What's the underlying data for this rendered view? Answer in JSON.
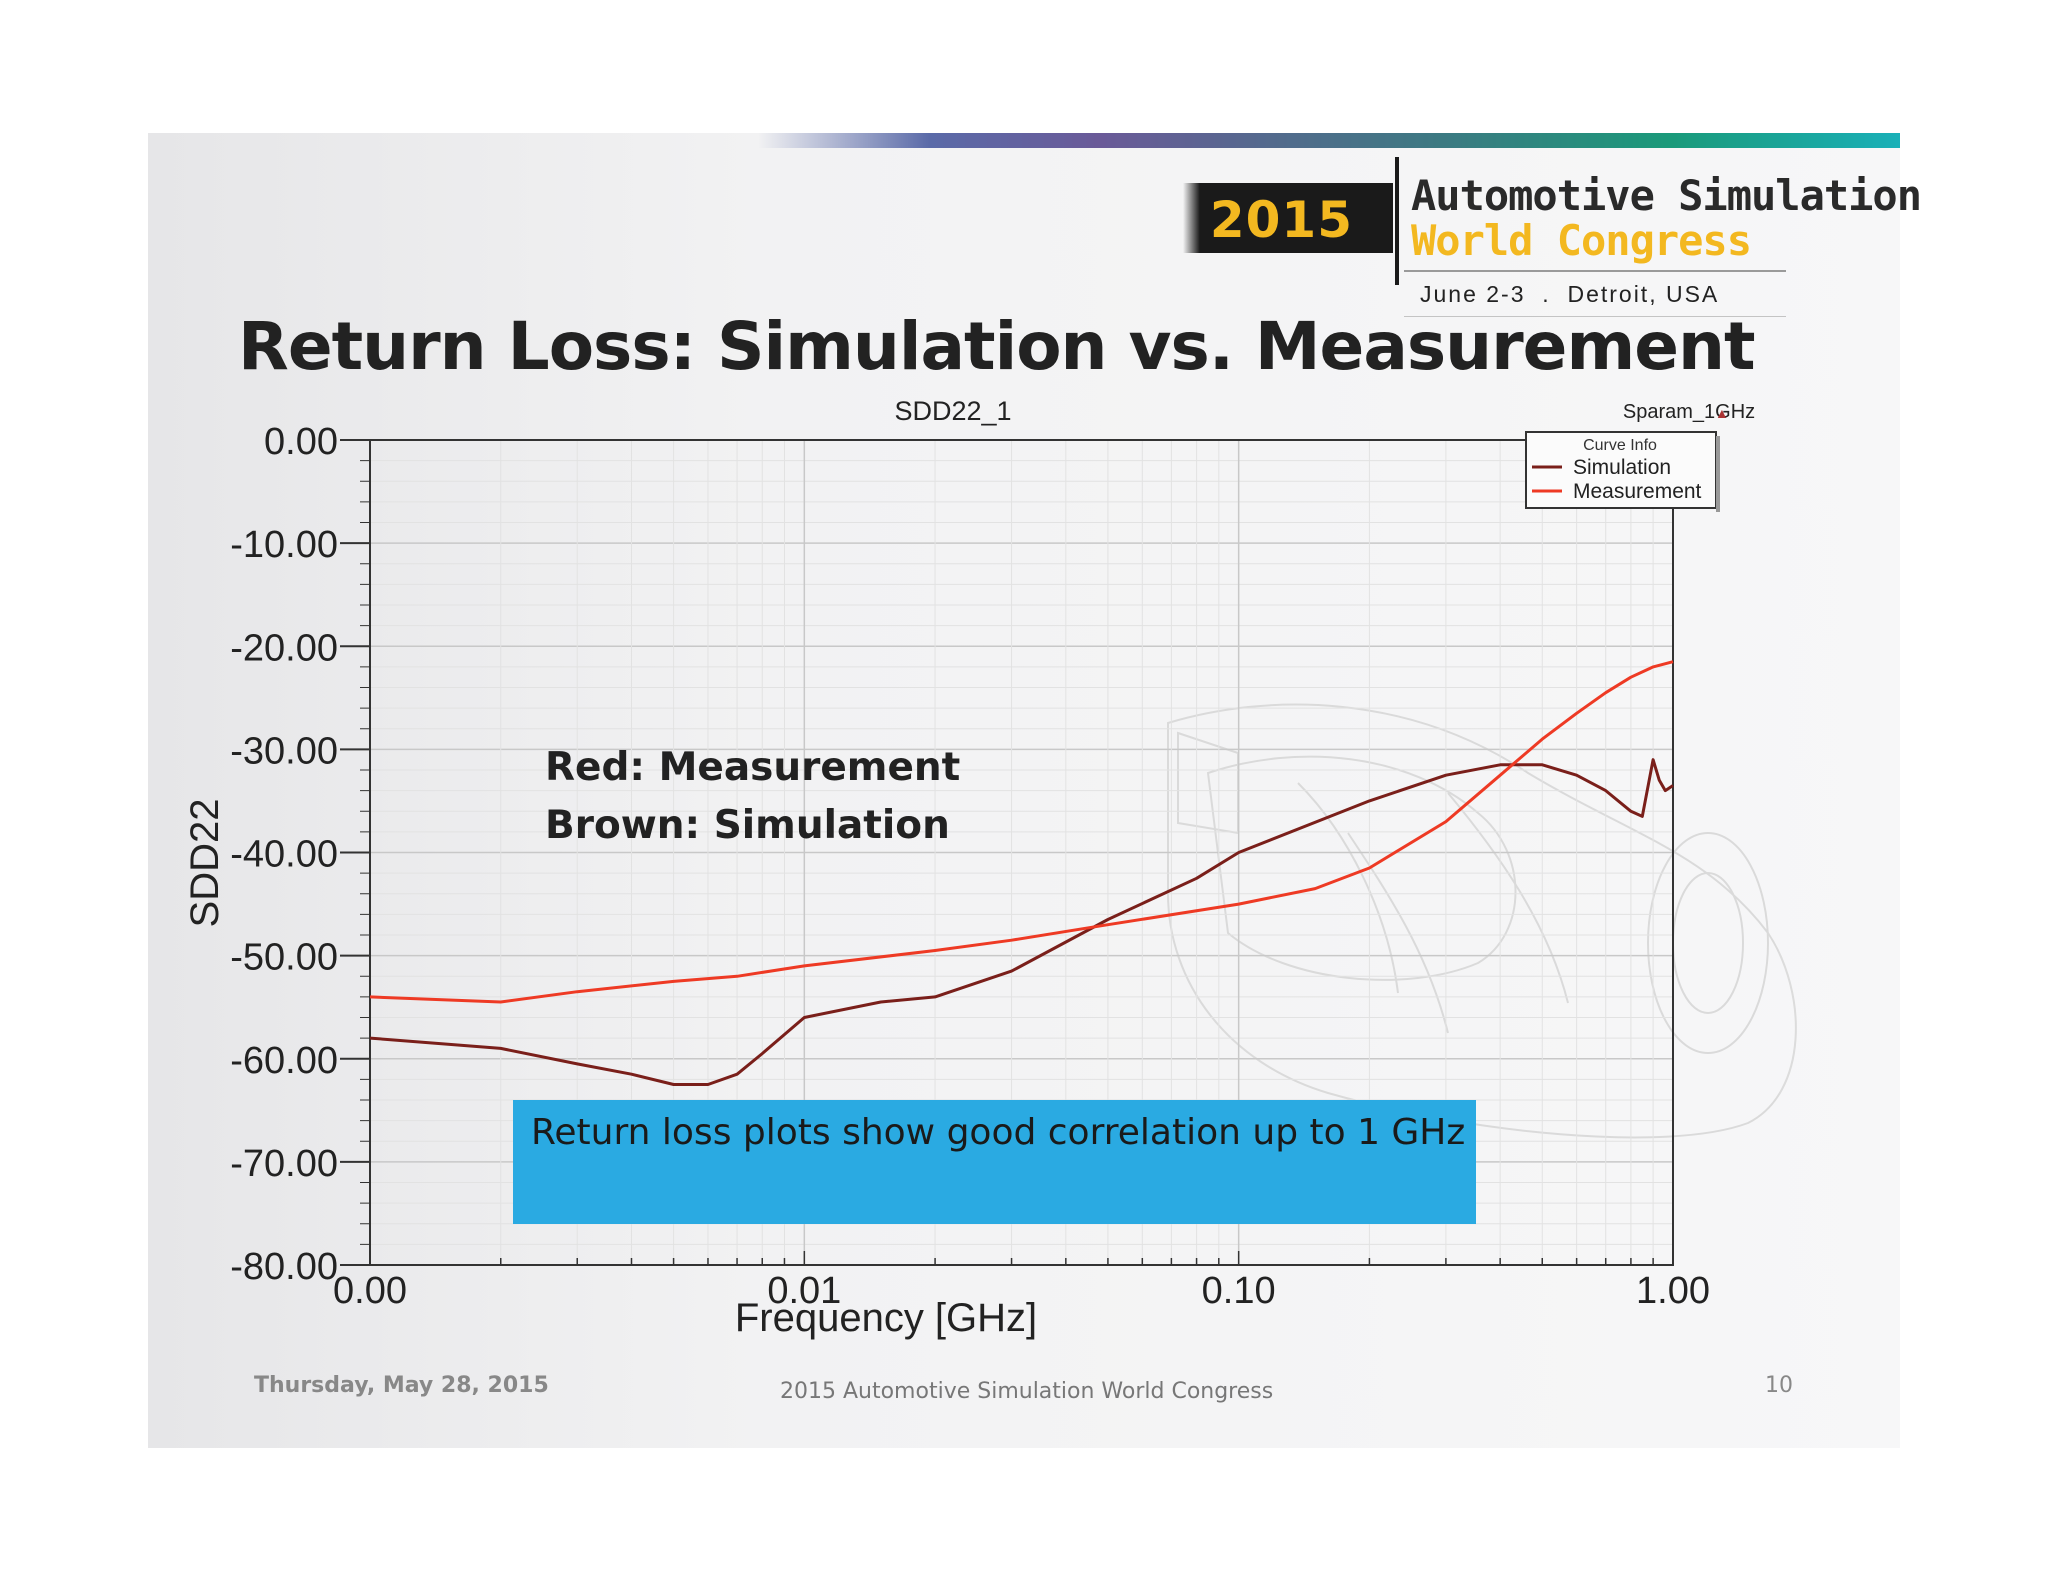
{
  "slide": {
    "title": "Return Loss: Simulation vs. Measurement",
    "logo": {
      "year": "2015",
      "line1": "Automotive Simulation",
      "line2": "World Congress",
      "dates": "June 2-3  .  Detroit, USA"
    },
    "annotations": {
      "red": "Red: Measurement",
      "brown": "Brown: Simulation"
    },
    "callout": "Return loss plots show good correlation up to 1 GHz",
    "footer": {
      "date": "Thursday, May 28, 2015",
      "center": "2015 Automotive Simulation World Congress",
      "page": "10"
    }
  },
  "colors": {
    "simulation": "#7a1f1a",
    "measurement": "#ee3a24",
    "callout": "#2aaae2",
    "logo_accent": "#f3b820"
  },
  "chart_data": {
    "type": "line",
    "title": "SDD22_1",
    "plot_label": "Sparam_1GHz",
    "xlabel": "Frequency [GHz]",
    "ylabel": "SDD22",
    "x_scale": "log",
    "xlim": [
      0.001,
      1.0
    ],
    "ylim": [
      -80,
      0
    ],
    "x_tick_values": [
      0.001,
      0.01,
      0.1,
      1.0
    ],
    "x_tick_labels": [
      "0.00",
      "0.01",
      "0.10",
      "1.00"
    ],
    "y_tick_values": [
      0,
      -10,
      -20,
      -30,
      -40,
      -50,
      -60,
      -70,
      -80
    ],
    "y_tick_labels": [
      "0.00",
      "-10.00",
      "-20.00",
      "-30.00",
      "-40.00",
      "-50.00",
      "-60.00",
      "-70.00",
      "-80.00"
    ],
    "grid": true,
    "legend": {
      "title": "Curve Info",
      "placement": "top-right",
      "entries": [
        "Simulation",
        "Measurement"
      ]
    },
    "series": [
      {
        "name": "Simulation",
        "color": "#7a1f1a",
        "x": [
          0.001,
          0.002,
          0.003,
          0.004,
          0.005,
          0.006,
          0.007,
          0.008,
          0.01,
          0.015,
          0.02,
          0.03,
          0.05,
          0.08,
          0.1,
          0.2,
          0.3,
          0.4,
          0.5,
          0.6,
          0.7,
          0.8,
          0.85,
          0.9,
          0.93,
          0.96,
          1.0
        ],
        "y": [
          -58,
          -59,
          -60.5,
          -61.5,
          -62.5,
          -62.5,
          -61.5,
          -59.5,
          -56,
          -54.5,
          -54,
          -51.5,
          -46.5,
          -42.5,
          -40,
          -35,
          -32.5,
          -31.5,
          -31.5,
          -32.5,
          -34,
          -36,
          -36.5,
          -31,
          -33,
          -34,
          -33.5
        ]
      },
      {
        "name": "Measurement",
        "color": "#ee3a24",
        "x": [
          0.001,
          0.002,
          0.003,
          0.005,
          0.007,
          0.01,
          0.02,
          0.03,
          0.05,
          0.1,
          0.15,
          0.2,
          0.3,
          0.4,
          0.5,
          0.6,
          0.7,
          0.8,
          0.9,
          1.0
        ],
        "y": [
          -54,
          -54.5,
          -53.5,
          -52.5,
          -52,
          -51,
          -49.5,
          -48.5,
          -47,
          -45,
          -43.5,
          -41.5,
          -37,
          -32.5,
          -29,
          -26.5,
          -24.5,
          -23,
          -22,
          -21.5
        ]
      }
    ]
  }
}
